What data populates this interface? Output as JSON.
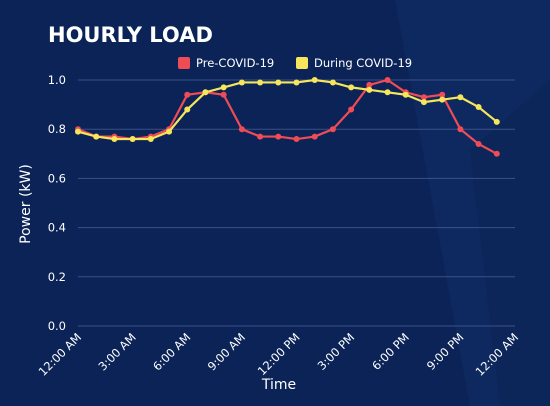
{
  "chart_data": {
    "type": "line",
    "title": "HOURLY LOAD",
    "xlabel": "Time",
    "ylabel": "Power (kW)",
    "ylim": [
      0,
      1.0
    ],
    "yticks": [
      "0.0",
      "0.2",
      "0.4",
      "0.6",
      "0.8",
      "1.0"
    ],
    "x_hours": [
      0,
      1,
      2,
      3,
      4,
      5,
      6,
      7,
      8,
      9,
      10,
      11,
      12,
      13,
      14,
      15,
      16,
      17,
      18,
      19,
      20,
      21,
      22,
      23
    ],
    "xticks": [
      {
        "hour": 0,
        "label": "12:00 AM"
      },
      {
        "hour": 3,
        "label": "3:00 AM"
      },
      {
        "hour": 6,
        "label": "6:00 AM"
      },
      {
        "hour": 9,
        "label": "9:00 AM"
      },
      {
        "hour": 12,
        "label": "12:00 PM"
      },
      {
        "hour": 15,
        "label": "3:00 PM"
      },
      {
        "hour": 18,
        "label": "6:00 PM"
      },
      {
        "hour": 21,
        "label": "9:00 PM"
      },
      {
        "hour": 24,
        "label": "12:00 AM"
      }
    ],
    "legend_position": "top",
    "grid": true,
    "series": [
      {
        "name": "Pre-COVID-19",
        "color": "#ef4c55",
        "values": [
          0.8,
          0.77,
          0.77,
          0.76,
          0.77,
          0.8,
          0.94,
          0.95,
          0.94,
          0.8,
          0.77,
          0.77,
          0.76,
          0.77,
          0.8,
          0.88,
          0.98,
          1.0,
          0.95,
          0.93,
          0.94,
          0.8,
          0.74,
          0.7
        ]
      },
      {
        "name": "During COVID-19",
        "color": "#f5e65c",
        "values": [
          0.79,
          0.77,
          0.76,
          0.76,
          0.76,
          0.79,
          0.88,
          0.95,
          0.97,
          0.99,
          0.99,
          0.99,
          0.99,
          1.0,
          0.99,
          0.97,
          0.96,
          0.95,
          0.94,
          0.91,
          0.92,
          0.93,
          0.89,
          0.83
        ]
      }
    ]
  },
  "colors": {
    "background": "#0b2357",
    "grid": "#3a5187",
    "text": "#ffffff"
  }
}
